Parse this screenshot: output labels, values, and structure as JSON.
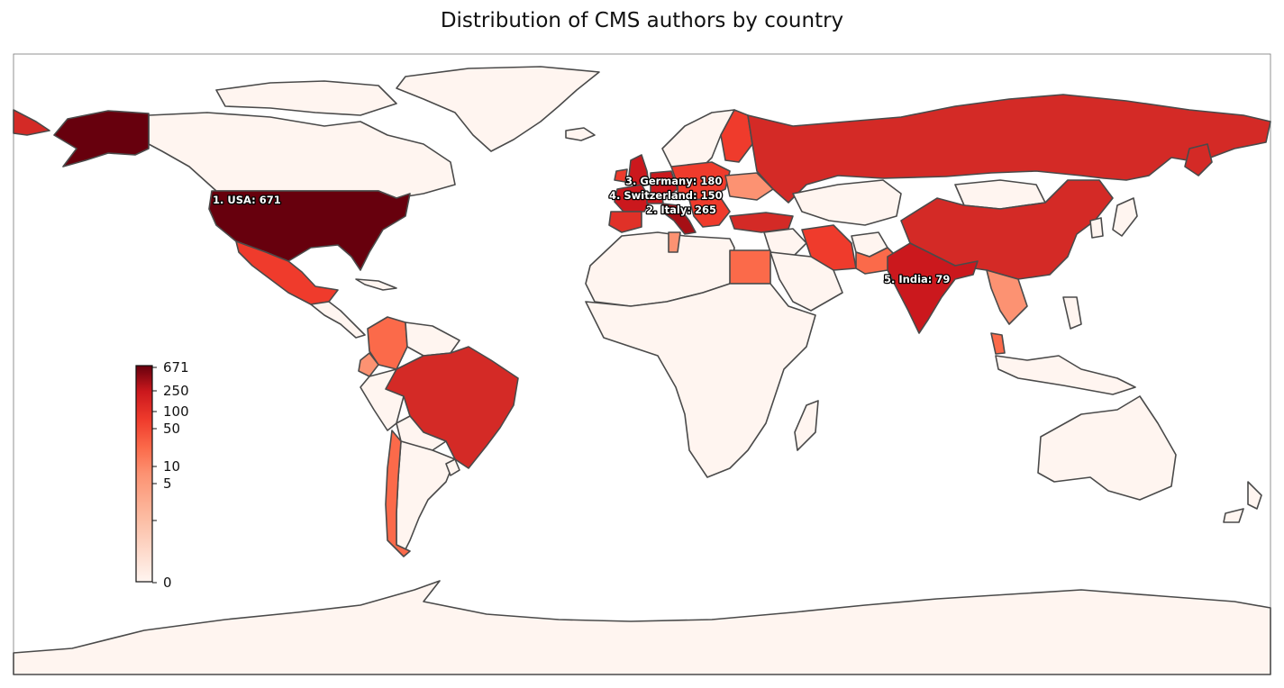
{
  "title": "Distribution of CMS authors by country",
  "colors": {
    "zero": "#fff5f0",
    "low": "#fc9272",
    "mid": "#ef3b2c",
    "high": "#cb181d",
    "max": "#67000d",
    "border": "#4a4a4a"
  },
  "colorbar": {
    "scale": "symlog",
    "max": 671,
    "tick_labels": [
      "671",
      "250",
      "100",
      "50",
      "10",
      "5",
      "",
      "0"
    ]
  },
  "annotations": [
    {
      "rank": 1,
      "text": "1. USA: 671",
      "country": "USA",
      "value": 671
    },
    {
      "rank": 2,
      "text": "2. Italy: 265",
      "country": "Italy",
      "value": 265
    },
    {
      "rank": 3,
      "text": "3. Germany: 180",
      "country": "Germany",
      "value": 180
    },
    {
      "rank": 4,
      "text": "4. Switzerland: 150",
      "country": "Switzerland",
      "value": 150
    },
    {
      "rank": 5,
      "text": "5. India: 79",
      "country": "India",
      "value": 79
    }
  ]
}
